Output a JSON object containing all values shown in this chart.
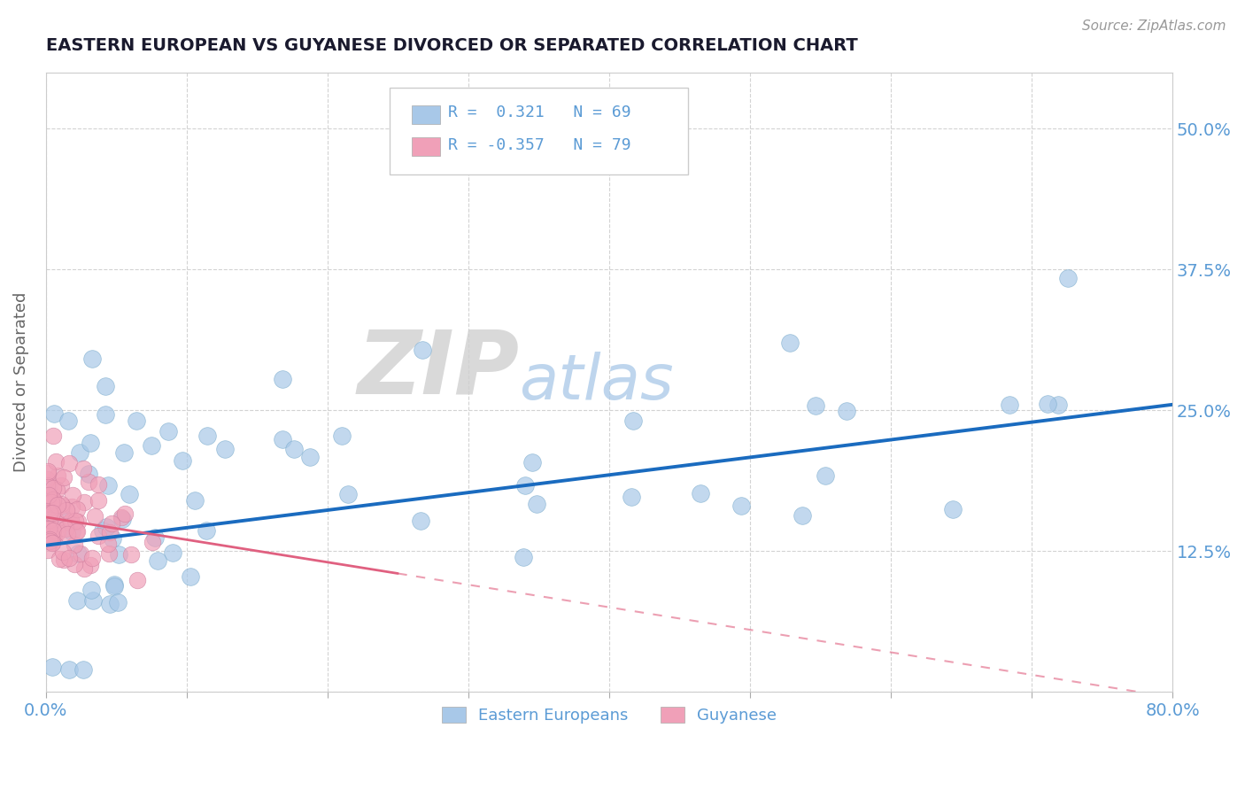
{
  "title": "EASTERN EUROPEAN VS GUYANESE DIVORCED OR SEPARATED CORRELATION CHART",
  "source": "Source: ZipAtlas.com",
  "ylabel": "Divorced or Separated",
  "xlim": [
    0.0,
    0.8
  ],
  "ylim": [
    0.0,
    0.55
  ],
  "xtick_positions": [
    0.0,
    0.1,
    0.2,
    0.3,
    0.4,
    0.5,
    0.6,
    0.7,
    0.8
  ],
  "xticklabels": [
    "0.0%",
    "",
    "",
    "",
    "",
    "",
    "",
    "",
    "80.0%"
  ],
  "ytick_positions": [
    0.0,
    0.125,
    0.25,
    0.375,
    0.5
  ],
  "ytick_right_labels": [
    "",
    "12.5%",
    "25.0%",
    "37.5%",
    "50.0%"
  ],
  "r_blue": 0.321,
  "n_blue": 69,
  "r_pink": -0.357,
  "n_pink": 79,
  "blue_dot_color": "#a8c8e8",
  "pink_dot_color": "#f0a0b8",
  "blue_line_color": "#1a6bbf",
  "pink_line_color": "#e06080",
  "legend_label_blue": "Eastern Europeans",
  "legend_label_pink": "Guyanese",
  "watermark_zip": "ZIP",
  "watermark_atlas": "atlas",
  "background_color": "#ffffff",
  "grid_color": "#c8c8c8",
  "tick_label_color": "#5b9bd5",
  "ylabel_color": "#666666",
  "title_color": "#1a1a2e",
  "source_color": "#999999",
  "blue_seed": 7,
  "pink_seed": 13,
  "blue_trend_start_y": 0.13,
  "blue_trend_end_y": 0.255,
  "pink_trend_start_y": 0.155,
  "pink_trend_end_y": 0.085
}
